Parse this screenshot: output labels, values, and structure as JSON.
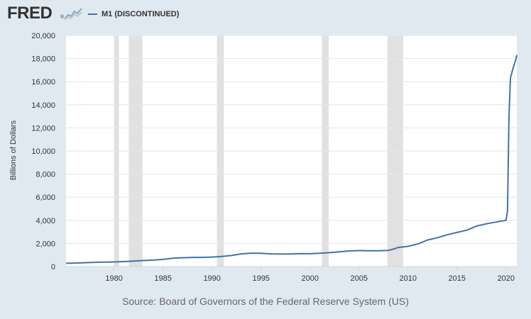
{
  "header": {
    "logo_text": "FRED",
    "logo_mark": "®",
    "logo_icon": "line-graph-icon"
  },
  "colors": {
    "background": "#e1e9f0",
    "plot_background": "#ffffff",
    "series": "#4572a7",
    "recession": "#e1e1e1",
    "gridline": "#e6e6e6"
  },
  "chart_data": {
    "type": "line",
    "title": "",
    "xlabel": "",
    "ylabel": "Billions of Dollars",
    "xlim": [
      1975.1,
      2021.1
    ],
    "ylim": [
      0,
      20000
    ],
    "yticks": [
      0,
      2000,
      4000,
      6000,
      8000,
      10000,
      12000,
      14000,
      16000,
      18000,
      20000
    ],
    "ytick_labels": [
      "0",
      "2,000",
      "4,000",
      "6,000",
      "8,000",
      "10,000",
      "12,000",
      "14,000",
      "16,000",
      "18,000",
      "20,000"
    ],
    "xticks": [
      1980,
      1985,
      1990,
      1995,
      2000,
      2005,
      2010,
      2015,
      2020
    ],
    "xtick_labels": [
      "1980",
      "1985",
      "1990",
      "1995",
      "2000",
      "2005",
      "2010",
      "2015",
      "2020"
    ],
    "grid": true,
    "legend_position": "top-left",
    "recessions": [
      [
        1980.0,
        1980.5
      ],
      [
        1981.5,
        1982.9
      ],
      [
        1990.5,
        1991.2
      ],
      [
        2001.2,
        2001.9
      ],
      [
        2007.9,
        2009.5
      ]
    ],
    "series": [
      {
        "name": "M1 (DISCONTINUED)",
        "x": [
          1975.1,
          1976,
          1977,
          1978,
          1979,
          1980,
          1981,
          1982,
          1983,
          1984,
          1985,
          1986,
          1987,
          1988,
          1989,
          1990,
          1991,
          1992,
          1993,
          1994,
          1995,
          1996,
          1997,
          1998,
          1999,
          2000,
          2001,
          2002,
          2003,
          2004,
          2005,
          2006,
          2007,
          2008,
          2008.7,
          2009,
          2010,
          2011,
          2012,
          2013,
          2014,
          2015,
          2016,
          2017,
          2018,
          2019,
          2020.0,
          2020.15,
          2020.3,
          2020.45,
          2020.6,
          2020.8,
          2021.0,
          2021.1
        ],
        "y": [
          285,
          300,
          330,
          360,
          380,
          400,
          430,
          470,
          520,
          560,
          620,
          720,
          760,
          790,
          790,
          820,
          870,
          960,
          1100,
          1160,
          1150,
          1100,
          1080,
          1090,
          1120,
          1110,
          1150,
          1200,
          1270,
          1350,
          1380,
          1370,
          1370,
          1400,
          1560,
          1650,
          1750,
          1950,
          2300,
          2500,
          2750,
          2950,
          3150,
          3500,
          3700,
          3850,
          4000,
          4800,
          13000,
          16300,
          16800,
          17400,
          17900,
          18300
        ]
      }
    ]
  },
  "source": {
    "text": "Source: Board of Governors of the Federal Reserve System (US)"
  }
}
